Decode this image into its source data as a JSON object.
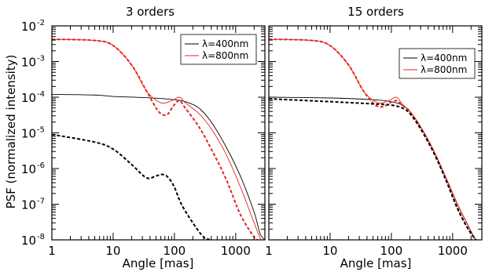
{
  "chart_data": [
    {
      "type": "line",
      "title": "3 orders",
      "xlabel": "Angle [mas]",
      "ylabel": "PSF (normalized intensity)",
      "xscale": "log",
      "yscale": "log",
      "xlim": [
        1,
        3000
      ],
      "ylim": [
        1e-08,
        0.01
      ],
      "x_ticks": [
        "1",
        "10",
        "100",
        "1000"
      ],
      "y_ticks": [
        {
          "base": "10",
          "exp": "-2"
        },
        {
          "base": "10",
          "exp": "-3"
        },
        {
          "base": "10",
          "exp": "-4"
        },
        {
          "base": "10",
          "exp": "-5"
        },
        {
          "base": "10",
          "exp": "-6"
        },
        {
          "base": "10",
          "exp": "-7"
        },
        {
          "base": "10",
          "exp": "-8"
        }
      ],
      "legend": {
        "position": "top-right",
        "entries": [
          {
            "label": "λ=400nm",
            "color": "#000000"
          },
          {
            "label": "λ=800nm",
            "color": "#e8231c"
          }
        ]
      },
      "series": [
        {
          "color": "#000000",
          "style": "solid",
          "x": [
            1,
            5,
            10,
            30,
            60,
            100,
            150,
            250,
            400,
            700,
            1200,
            2000,
            2500,
            3000
          ],
          "y": [
            0.00012,
            0.000115,
            0.000105,
            9.8e-05,
            9.2e-05,
            8.5e-05,
            7.5e-05,
            5e-05,
            2e-05,
            4e-06,
            6e-07,
            6e-08,
            1.5e-08,
            1e-08
          ]
        },
        {
          "color": "#e8231c",
          "style": "solid",
          "x": [
            1,
            5,
            10,
            20,
            35,
            60,
            90,
            120,
            150,
            250,
            400,
            700,
            1200,
            2000,
            2600,
            3000
          ],
          "y": [
            0.0042,
            0.0039,
            0.0028,
            0.0008,
            0.00015,
            7e-05,
            8e-05,
            0.0001,
            7e-05,
            3.5e-05,
            1.3e-05,
            2.5e-06,
            3e-07,
            3e-08,
            1e-08,
            1e-08
          ]
        },
        {
          "color": "#e8231c",
          "style": "dashed",
          "x": [
            1,
            5,
            10,
            20,
            35,
            55,
            75,
            95,
            120,
            150,
            250,
            400,
            700,
            1200,
            2000,
            2300
          ],
          "y": [
            0.0042,
            0.0039,
            0.0028,
            0.0008,
            0.00015,
            4e-05,
            3.2e-05,
            5.5e-05,
            8e-05,
            5e-05,
            1.5e-05,
            3.5e-06,
            5e-07,
            5e-08,
            1.2e-08,
            1e-08
          ]
        },
        {
          "color": "#000000",
          "style": "dashed",
          "x": [
            1,
            5,
            10,
            20,
            35,
            50,
            65,
            80,
            100,
            130,
            200,
            300,
            400
          ],
          "y": [
            9e-06,
            5.5e-06,
            3.5e-06,
            1.3e-06,
            5.5e-07,
            6.2e-07,
            6.8e-07,
            5.5e-07,
            3e-07,
            1e-07,
            3e-08,
            1.2e-08,
            1e-08
          ]
        }
      ]
    },
    {
      "type": "line",
      "title": "15 orders",
      "xlabel": "Angle [mas]",
      "xscale": "log",
      "yscale": "log",
      "xlim": [
        1,
        3000
      ],
      "ylim": [
        1e-08,
        0.01
      ],
      "x_ticks": [
        "1",
        "10",
        "100",
        "1000"
      ],
      "legend": {
        "position": "top-right",
        "entries": [
          {
            "label": "λ=400nm",
            "color": "#000000"
          },
          {
            "label": "λ=800nm",
            "color": "#e8231c"
          }
        ]
      },
      "series": [
        {
          "color": "#000000",
          "style": "solid",
          "x": [
            1,
            10,
            50,
            100,
            150,
            200,
            300,
            500,
            800,
            1200,
            1800,
            2400,
            3000
          ],
          "y": [
            0.0001,
            9.5e-05,
            8.5e-05,
            7.5e-05,
            6e-05,
            4e-05,
            1.5e-05,
            3e-06,
            5e-07,
            1e-07,
            2.5e-08,
            1e-08,
            1e-08
          ]
        },
        {
          "color": "#e8231c",
          "style": "solid",
          "x": [
            1,
            5,
            10,
            20,
            35,
            60,
            90,
            120,
            150,
            200,
            300,
            500,
            800,
            1200,
            1800,
            2400,
            3000
          ],
          "y": [
            0.0042,
            0.0039,
            0.0028,
            0.0008,
            0.00015,
            7e-05,
            8e-05,
            0.0001,
            6.5e-05,
            4e-05,
            1.5e-05,
            3e-06,
            5e-07,
            1e-07,
            2.5e-08,
            1e-08,
            1e-08
          ]
        },
        {
          "color": "#e8231c",
          "style": "dashed",
          "x": [
            1,
            5,
            10,
            20,
            35,
            55,
            75,
            95,
            120,
            150,
            200,
            300,
            500,
            800,
            1200,
            1800,
            2400
          ],
          "y": [
            0.0042,
            0.0039,
            0.0028,
            0.0008,
            0.00015,
            6e-05,
            5.5e-05,
            7e-05,
            8e-05,
            6e-05,
            4e-05,
            1.4e-05,
            2.8e-06,
            4.5e-07,
            8e-08,
            2e-08,
            1e-08
          ]
        },
        {
          "color": "#000000",
          "style": "dashed",
          "x": [
            1,
            10,
            50,
            100,
            150,
            200,
            300,
            500,
            800,
            1200,
            1800,
            2400
          ],
          "y": [
            9e-05,
            7.5e-05,
            6.5e-05,
            6e-05,
            5e-05,
            3.5e-05,
            1.3e-05,
            2.6e-06,
            4.2e-07,
            7.5e-08,
            2e-08,
            1e-08
          ]
        }
      ]
    }
  ]
}
